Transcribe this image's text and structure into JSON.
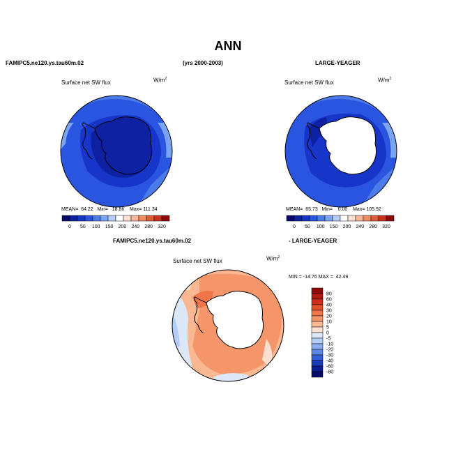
{
  "title": "ANN",
  "header": {
    "case1": "FAMIPC5.ne120.ys.tau60m.02",
    "years": "(yrs 2000-2003)",
    "case2": "LARGE-YEAGER",
    "diff_case1": "FAMIPC5.ne120.ys.tau60m.02",
    "diff_case2": "- LARGE-YEAGER"
  },
  "panels": {
    "left": {
      "variable": "Surface net SW flux",
      "units_base": "W/m",
      "units_exp": "2",
      "stats": "MEAN=  64.22   Min=   18.86    Max= 111.34"
    },
    "right": {
      "variable": "Surface net SW flux",
      "units_base": "W/m",
      "units_exp": "2",
      "stats": "MEAN=  65.73   Min=    0.00    Max= 105.92"
    },
    "diff": {
      "variable": "Surface net SW flux",
      "units_base": "W/m",
      "units_exp": "2",
      "stats": "MIN = -14.76 MAX =  42.49"
    }
  },
  "chart_data": [
    {
      "type": "heatmap",
      "title": "Surface net SW flux",
      "units": "W/m2",
      "colorbar_ticks": [
        "0",
        "50",
        "100",
        "150",
        "200",
        "240",
        "280",
        "320"
      ],
      "colorbar_colors": [
        "#08086b",
        "#0d21a1",
        "#1736c9",
        "#2a55e0",
        "#4a7be8",
        "#7aa3f0",
        "#b3cdf7",
        "#ffffff",
        "#fde0cf",
        "#f7b89a",
        "#ef8a62",
        "#e05a3a",
        "#c8321e",
        "#8c0a0a"
      ],
      "stats": {
        "mean": 64.22,
        "min": 18.86,
        "max": 111.34
      }
    },
    {
      "type": "heatmap",
      "title": "Surface net SW flux",
      "units": "W/m2",
      "colorbar_ticks": [
        "0",
        "50",
        "100",
        "150",
        "200",
        "240",
        "280",
        "320"
      ],
      "colorbar_colors": [
        "#08086b",
        "#0d21a1",
        "#1736c9",
        "#2a55e0",
        "#4a7be8",
        "#7aa3f0",
        "#b3cdf7",
        "#ffffff",
        "#fde0cf",
        "#f7b89a",
        "#ef8a62",
        "#e05a3a",
        "#c8321e",
        "#8c0a0a"
      ],
      "stats": {
        "mean": 65.73,
        "min": 0.0,
        "max": 105.92
      }
    },
    {
      "type": "heatmap",
      "title": "Surface net SW flux",
      "units": "W/m2",
      "colorbar_ticks": [
        "80",
        "60",
        "40",
        "30",
        "20",
        "10",
        "5",
        "0",
        "-5",
        "-10",
        "-20",
        "-30",
        "-40",
        "-60",
        "-80"
      ],
      "colorbar_colors": [
        "#8c0a0a",
        "#b01a12",
        "#d02d1a",
        "#e4502c",
        "#f07548",
        "#f5956a",
        "#f9b892",
        "#fde0cf",
        "#dce8f7",
        "#b3cdf7",
        "#8aaef0",
        "#5c87e6",
        "#3560d9",
        "#1a3ab8",
        "#0c1f94",
        "#050a6b"
      ],
      "stats": {
        "min": -14.76,
        "max": 42.49
      }
    }
  ]
}
